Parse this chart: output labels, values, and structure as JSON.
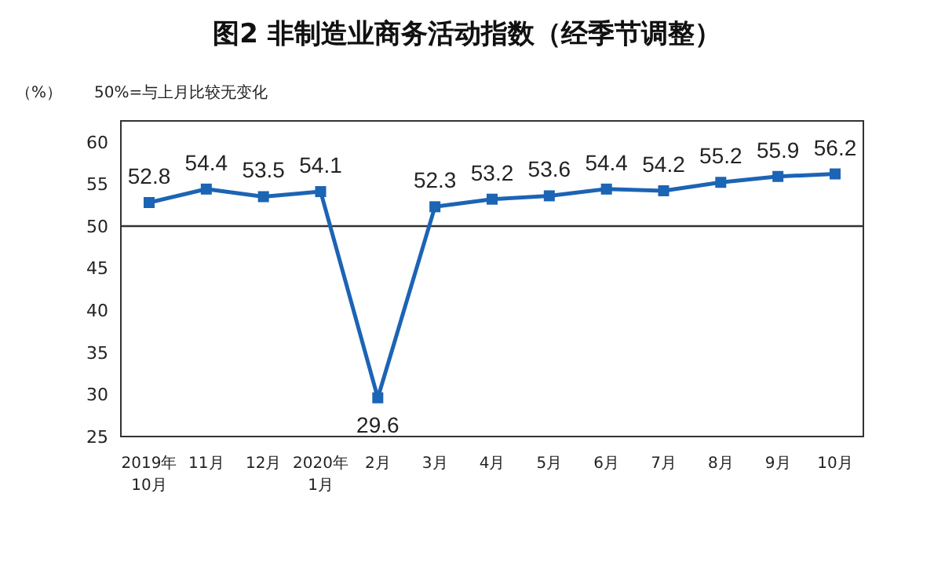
{
  "chart_data": {
    "type": "line",
    "title": "图2 非制造业商务活动指数（经季节调整）",
    "ylabel": "（%）",
    "annotations": [
      "50%=与上月比较无变化"
    ],
    "categories": [
      "2019年\n10月",
      "11月",
      "12月",
      "2020年\n1月",
      "2月",
      "3月",
      "4月",
      "5月",
      "6月",
      "7月",
      "8月",
      "9月",
      "10月"
    ],
    "series": [
      {
        "color": "#1c64b4",
        "values": [
          52.8,
          54.4,
          53.5,
          54.1,
          29.6,
          52.3,
          53.2,
          53.6,
          54.4,
          54.2,
          55.2,
          55.9,
          56.2
        ]
      }
    ],
    "ylim": [
      25,
      62.5
    ],
    "yticks": [
      25,
      30,
      35,
      40,
      45,
      50,
      55,
      60
    ],
    "ref_lines": [
      {
        "axis": "y",
        "value": 50,
        "color": "#333333"
      }
    ],
    "data_labels": true,
    "marker": "square",
    "line_style": "solid",
    "grid": false,
    "legend": false
  }
}
